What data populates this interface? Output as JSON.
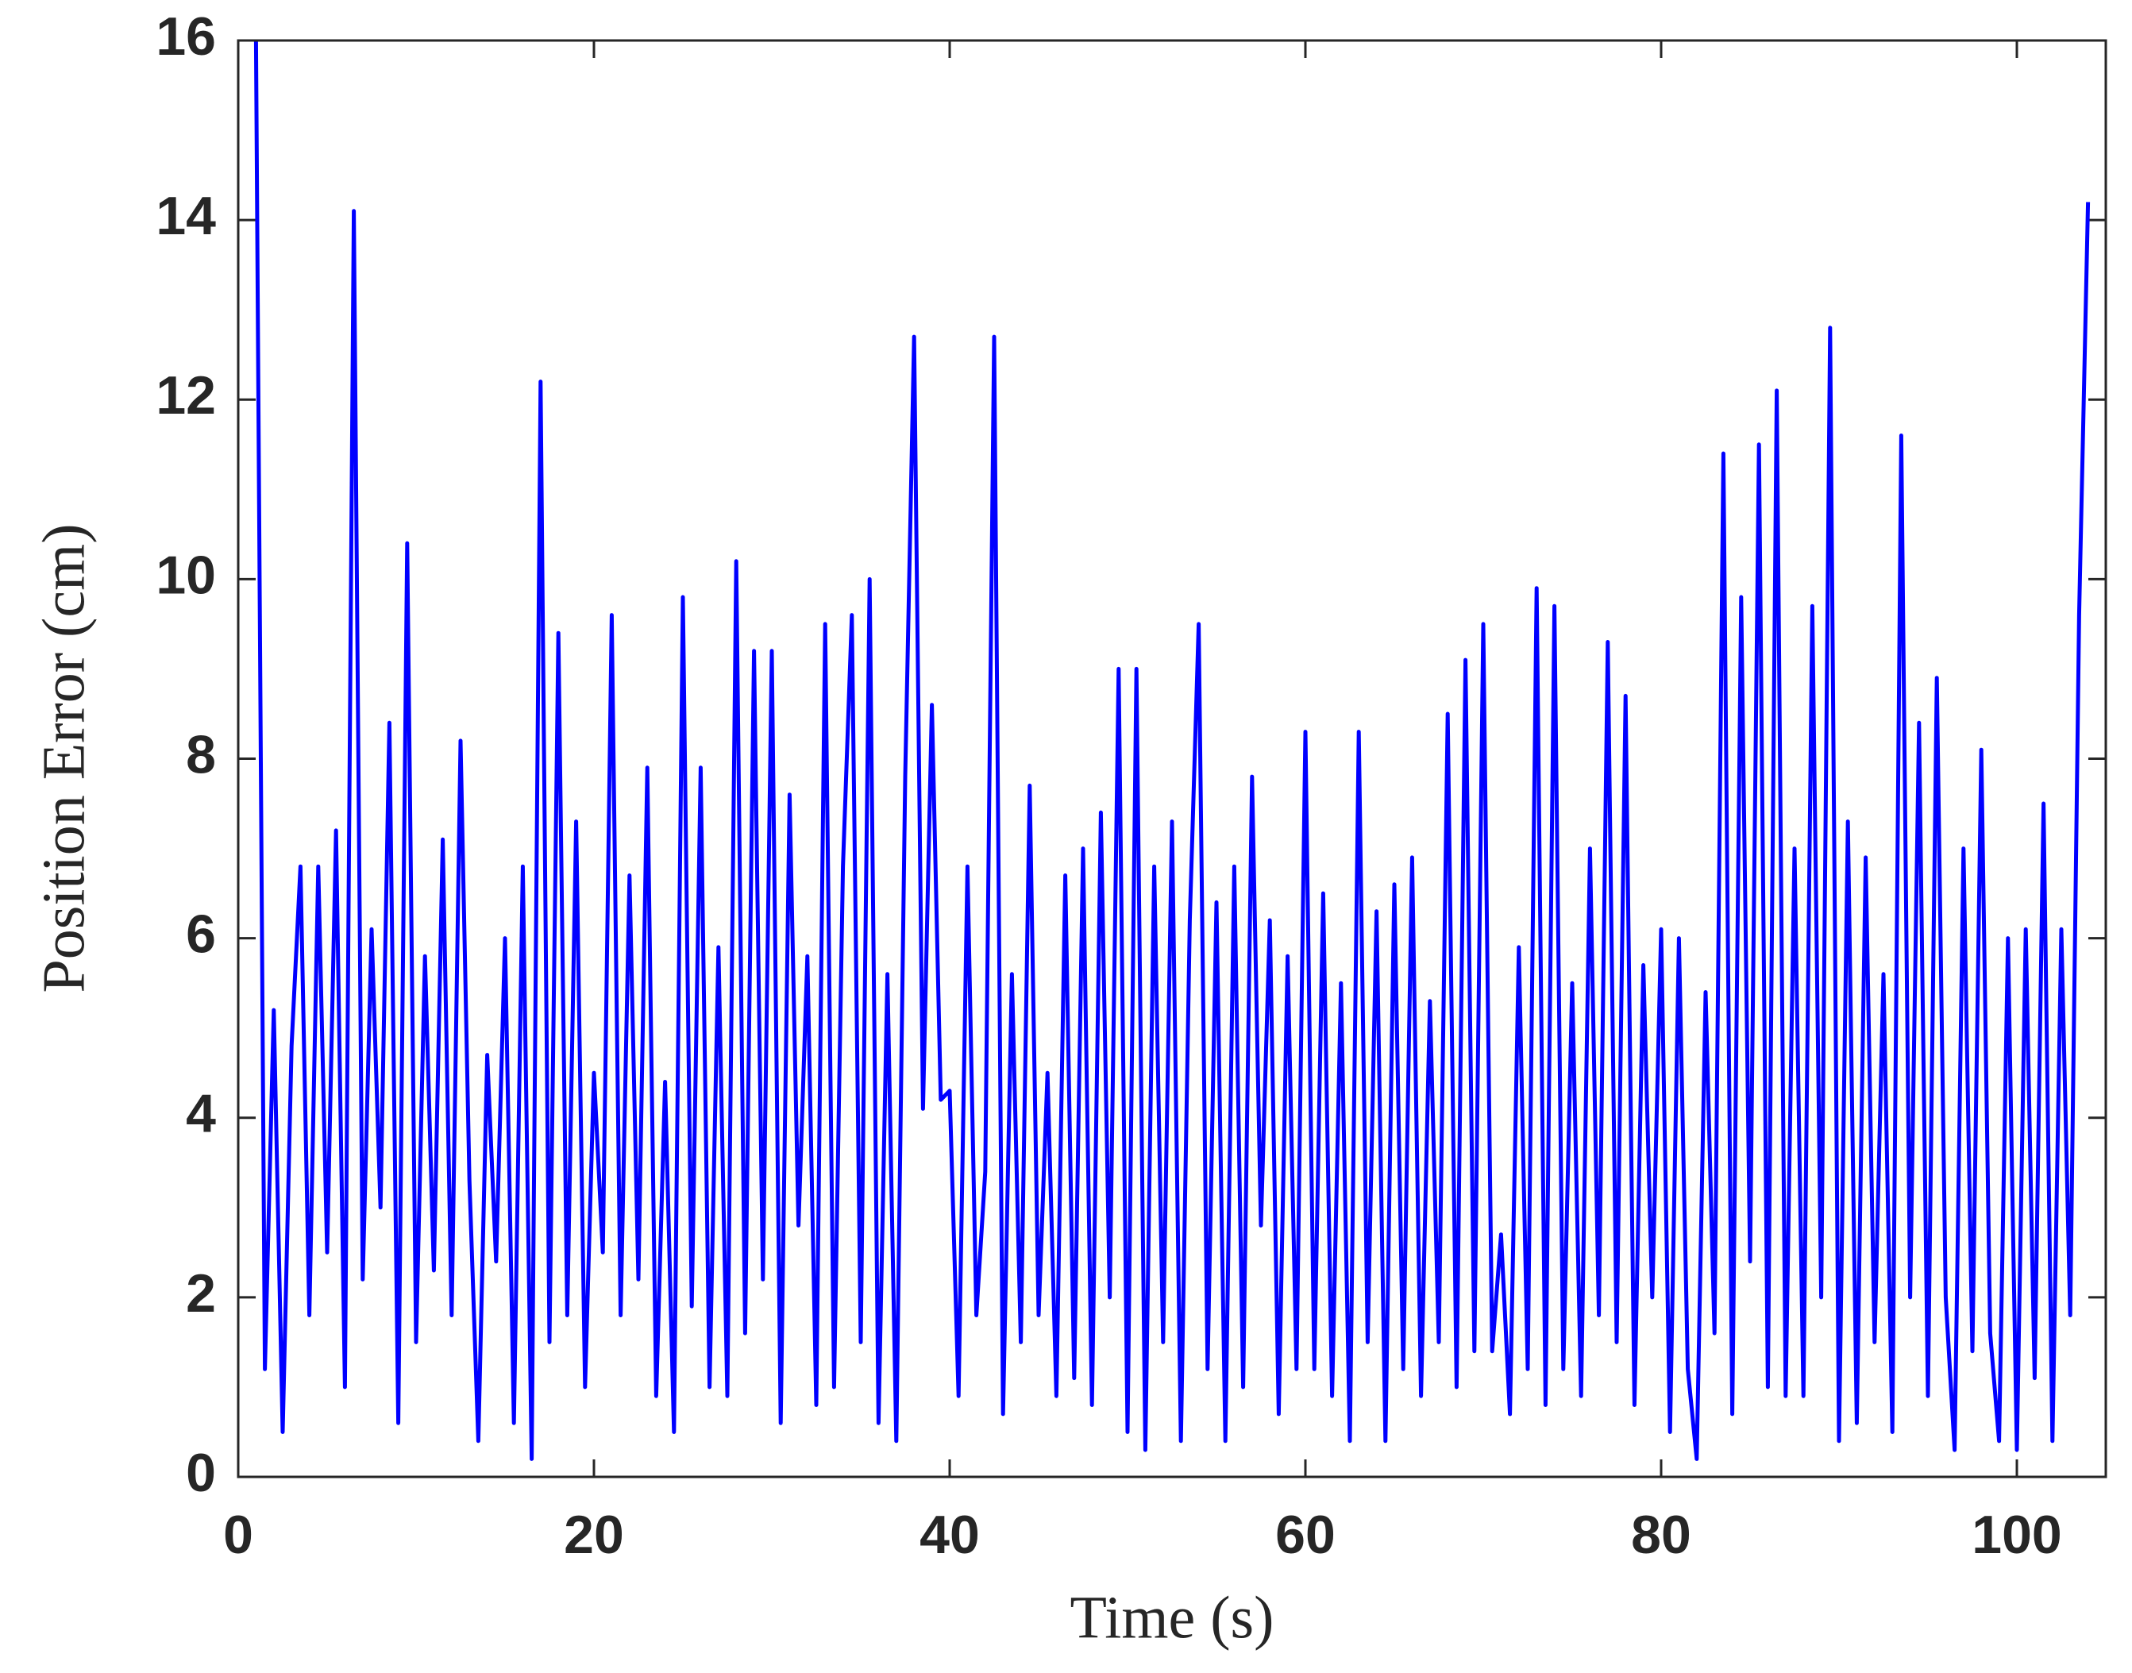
{
  "chart_data": {
    "type": "line",
    "xlabel": "Time (s)",
    "ylabel": "Position Error (cm)",
    "xlim": [
      0,
      105
    ],
    "ylim": [
      0,
      16
    ],
    "xticks": [
      0,
      20,
      40,
      60,
      80,
      100
    ],
    "yticks": [
      0,
      2,
      4,
      6,
      8,
      10,
      12,
      14,
      16
    ],
    "color": "#0000ff",
    "box": true,
    "x": [
      1,
      1.5,
      2,
      2.5,
      3,
      3.5,
      4,
      4.5,
      5,
      5.5,
      6,
      6.5,
      7,
      7.5,
      8,
      8.5,
      9,
      9.5,
      10,
      10.5,
      11,
      11.5,
      12,
      12.5,
      13,
      13.5,
      14,
      14.5,
      15,
      15.5,
      16,
      16.5,
      17,
      17.5,
      18,
      18.5,
      19,
      19.5,
      20,
      20.5,
      21,
      21.5,
      22,
      22.5,
      23,
      23.5,
      24,
      24.5,
      25,
      25.5,
      26,
      26.5,
      27,
      27.5,
      28,
      28.5,
      29,
      29.5,
      30,
      30.5,
      31,
      31.5,
      32,
      32.5,
      33,
      33.5,
      34,
      34.5,
      35,
      35.5,
      36,
      36.5,
      37,
      37.5,
      38,
      38.5,
      39,
      39.5,
      40,
      40.5,
      41,
      41.5,
      42,
      42.5,
      43,
      43.5,
      44,
      44.5,
      45,
      45.5,
      46,
      46.5,
      47,
      47.5,
      48,
      48.5,
      49,
      49.5,
      50,
      50.5,
      51,
      51.5,
      52,
      52.5,
      53,
      53.5,
      54,
      54.5,
      55,
      55.5,
      56,
      56.5,
      57,
      57.5,
      58,
      58.5,
      59,
      59.5,
      60,
      60.5,
      61,
      61.5,
      62,
      62.5,
      63,
      63.5,
      64,
      64.5,
      65,
      65.5,
      66,
      66.5,
      67,
      67.5,
      68,
      68.5,
      69,
      69.5,
      70,
      70.5,
      71,
      71.5,
      72,
      72.5,
      73,
      73.5,
      74,
      74.5,
      75,
      75.5,
      76,
      76.5,
      77,
      77.5,
      78,
      78.5,
      79,
      79.5,
      80,
      80.5,
      81,
      81.5,
      82,
      82.5,
      83,
      83.5,
      84,
      84.5,
      85,
      85.5,
      86,
      86.5,
      87,
      87.5,
      88,
      88.5,
      89,
      89.5,
      90,
      90.5,
      91,
      91.5,
      92,
      92.5,
      93,
      93.5,
      94,
      94.5,
      95,
      95.5,
      96,
      96.5,
      97,
      97.5,
      98,
      98.5,
      99,
      99.5,
      100,
      100.5,
      101,
      101.5,
      102,
      102.5,
      103,
      103.5,
      104
    ],
    "values": [
      16,
      1.2,
      5.2,
      0.5,
      4.8,
      6.8,
      1.8,
      6.8,
      2.5,
      7.2,
      1.0,
      14.1,
      2.2,
      6.1,
      3.0,
      8.4,
      0.6,
      10.4,
      1.5,
      5.8,
      2.3,
      7.1,
      1.8,
      8.2,
      3.3,
      0.4,
      4.7,
      2.4,
      6.0,
      0.6,
      6.8,
      0.2,
      12.2,
      1.5,
      9.4,
      1.8,
      7.3,
      1.0,
      4.5,
      2.5,
      9.6,
      1.8,
      6.7,
      2.2,
      7.9,
      0.9,
      4.4,
      0.5,
      9.8,
      1.9,
      7.9,
      1.0,
      5.9,
      0.9,
      10.2,
      1.6,
      9.2,
      2.2,
      9.2,
      0.6,
      7.6,
      2.8,
      5.8,
      0.8,
      9.5,
      1.0,
      6.8,
      9.6,
      1.5,
      10.0,
      0.6,
      5.6,
      0.4,
      7.8,
      12.7,
      4.1,
      8.6,
      4.2,
      4.3,
      0.9,
      6.8,
      1.8,
      3.4,
      12.7,
      0.7,
      5.6,
      1.5,
      7.7,
      1.8,
      4.5,
      0.9,
      6.7,
      1.1,
      7.0,
      0.8,
      7.4,
      2.0,
      9.0,
      0.5,
      9.0,
      0.3,
      6.8,
      1.5,
      7.3,
      0.4,
      6.2,
      9.5,
      1.2,
      6.4,
      0.4,
      6.8,
      1.0,
      7.8,
      2.8,
      6.2,
      0.7,
      5.8,
      1.2,
      8.3,
      1.2,
      6.5,
      0.9,
      5.5,
      0.4,
      8.3,
      1.5,
      6.3,
      0.4,
      6.6,
      1.2,
      6.9,
      0.9,
      5.3,
      1.5,
      8.5,
      1.0,
      9.1,
      1.4,
      9.5,
      1.4,
      2.7,
      0.7,
      5.9,
      1.2,
      9.9,
      0.8,
      9.7,
      1.2,
      5.5,
      0.9,
      7.0,
      1.8,
      9.3,
      1.5,
      8.7,
      0.8,
      5.7,
      2.0,
      6.1,
      0.5,
      6.0,
      1.2,
      0.2,
      5.4,
      1.6,
      11.4,
      0.7,
      9.8,
      2.4,
      11.5,
      1.0,
      12.1,
      0.9,
      7.0,
      0.9,
      9.7,
      2.0,
      12.8,
      0.4,
      7.3,
      0.6,
      6.9,
      1.5,
      5.6,
      0.5,
      11.6,
      2.0,
      8.4,
      0.9,
      8.9,
      2.0,
      0.3,
      7.0,
      1.4,
      8.1,
      1.6,
      0.4,
      6.0,
      0.3,
      6.1,
      1.1,
      7.5,
      0.4,
      6.1,
      1.8,
      9.6,
      14.2
    ]
  }
}
